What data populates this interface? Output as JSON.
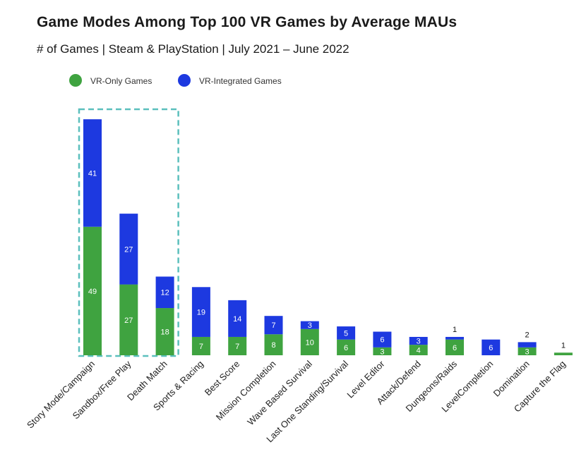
{
  "header": {
    "title": "Game Modes Among Top 100 VR Games by Average MAUs",
    "subtitle": "# of Games | Steam & PlayStation | July 2021 – June 2022"
  },
  "colors": {
    "vr_only": "#3fa340",
    "vr_integrated": "#1d39e0",
    "highlight_box": "#5bbfbd"
  },
  "legend": [
    {
      "label": "VR-Only Games",
      "color": "#3fa340"
    },
    {
      "label": "VR-Integrated Games",
      "color": "#1d39e0"
    }
  ],
  "chart_data": {
    "type": "bar",
    "stacked": true,
    "title": "Game Modes Among Top 100 VR Games by Average MAUs",
    "subtitle": "# of Games | Steam & PlayStation | July 2021 – June 2022",
    "xlabel": "",
    "ylabel": "",
    "ylim": [
      0,
      90
    ],
    "grid": false,
    "legend_position": "top-left",
    "categories": [
      "Story Mode/Campaign",
      "Sandbox/Free Play",
      "Death Match",
      "Sports & Racing",
      "Best Score",
      "Mission Completion",
      "Wave Based Survival",
      "Last One Standing/Survival",
      "Level Editor",
      "Attack/Defend",
      "Dungeons/Raids",
      "LevelCompletion",
      "Domination",
      "Capture the Flag"
    ],
    "series": [
      {
        "name": "VR-Only Games",
        "values": [
          49,
          27,
          18,
          7,
          7,
          8,
          10,
          6,
          3,
          4,
          6,
          0,
          3,
          1
        ]
      },
      {
        "name": "VR-Integrated Games",
        "values": [
          41,
          27,
          12,
          19,
          14,
          7,
          3,
          5,
          6,
          3,
          1,
          6,
          2,
          0
        ]
      }
    ],
    "highlighted_categories": [
      "Story Mode/Campaign",
      "Sandbox/Free Play",
      "Death Match"
    ]
  }
}
